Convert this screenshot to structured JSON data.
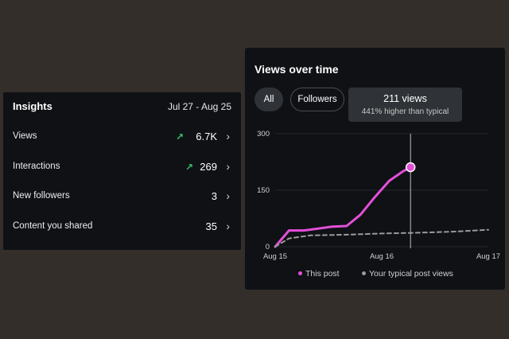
{
  "insights": {
    "title": "Insights",
    "date_range": "Jul 27 - Aug 25",
    "rows": [
      {
        "label": "Views",
        "value": "6.7K",
        "trend": "↗"
      },
      {
        "label": "Interactions",
        "value": "269",
        "trend": "↗"
      },
      {
        "label": "New followers",
        "value": "3",
        "trend": ""
      },
      {
        "label": "Content you shared",
        "value": "35",
        "trend": ""
      }
    ]
  },
  "views_over_time": {
    "title": "Views over time",
    "filters": [
      {
        "label": "All",
        "selected": true
      },
      {
        "label": "Followers",
        "selected": false
      }
    ],
    "tooltip": {
      "main": "211 views",
      "sub": "441% higher than typical"
    }
  },
  "colors": {
    "accent": "#e44fd8",
    "trend_up": "#3ac26a",
    "typical": "#9a9a9a",
    "card_bg": "#0f1115",
    "page_bg": "#332e2a"
  },
  "chart_data": {
    "type": "line",
    "x_ticks": [
      "Aug 15",
      "Aug 16",
      "Aug 17"
    ],
    "y_ticks": [
      "0",
      "150",
      "300"
    ],
    "ylim": [
      0,
      300
    ],
    "xlim": [
      0,
      2
    ],
    "series": [
      {
        "name": "This post",
        "style": "solid",
        "color": "#e44fd8",
        "x": [
          0,
          0.13,
          0.27,
          0.4,
          0.53,
          0.67,
          0.8,
          0.93,
          1.07,
          1.2,
          1.27
        ],
        "y": [
          0,
          43,
          43,
          48,
          53,
          55,
          85,
          130,
          175,
          200,
          211
        ]
      },
      {
        "name": "Your typical post views",
        "style": "dashed",
        "color": "#9a9a9a",
        "x": [
          0,
          0.13,
          0.33,
          0.67,
          1.0,
          1.33,
          1.67,
          2.0
        ],
        "y": [
          0,
          22,
          30,
          32,
          35,
          37,
          40,
          45
        ]
      }
    ],
    "highlight": {
      "x": 1.27,
      "y": 211
    },
    "legend_position": "bottom"
  }
}
